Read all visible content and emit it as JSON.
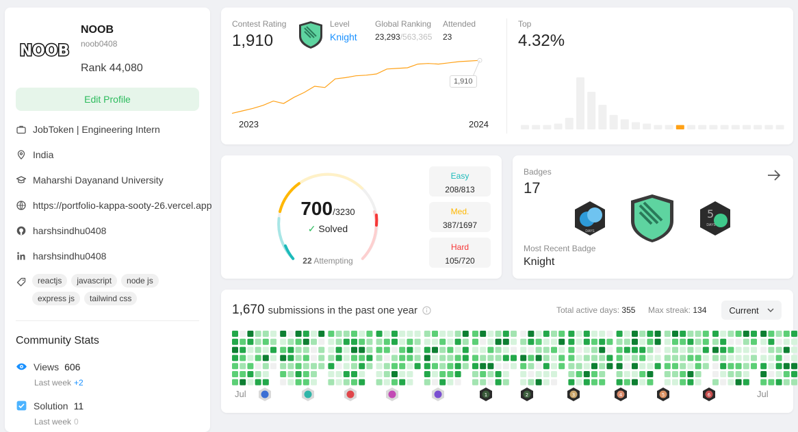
{
  "profile": {
    "display_name": "NOOB",
    "username": "noob0408",
    "rank_text": "Rank 44,080",
    "avatar_text": "NOOB",
    "edit_label": "Edit Profile",
    "info": [
      {
        "icon": "briefcase-icon",
        "text": "JobToken | Engineering Intern"
      },
      {
        "icon": "location-pin-icon",
        "text": "India"
      },
      {
        "icon": "graduation-cap-icon",
        "text": "Maharshi Dayanand University"
      },
      {
        "icon": "globe-icon",
        "text": "https://portfolio-kappa-sooty-26.vercel.app"
      },
      {
        "icon": "github-icon",
        "text": "harshsindhu0408"
      },
      {
        "icon": "linkedin-icon",
        "text": "harshsindhu0408"
      }
    ],
    "tags": [
      "reactjs",
      "javascript",
      "node js",
      "express js",
      "tailwind css"
    ]
  },
  "community": {
    "title": "Community Stats",
    "views_label": "Views",
    "views_value": "606",
    "views_week_label": "Last week",
    "views_week_delta": "+2",
    "solution_label": "Solution",
    "solution_value": "11",
    "solution_week_label": "Last week",
    "solution_week_delta": "0"
  },
  "contest": {
    "rating_label": "Contest Rating",
    "rating_value": "1,910",
    "level_label": "Level",
    "level_value": "Knight",
    "global_label": "Global Ranking",
    "global_value": "23,293",
    "global_total": "/563,365",
    "attended_label": "Attended",
    "attended_value": "23",
    "top_label": "Top",
    "top_value": "4.32%",
    "x_start": "2023",
    "x_end": "2024",
    "tooltip": "1,910",
    "rating_history": [
      1480,
      1500,
      1520,
      1545,
      1580,
      1560,
      1610,
      1650,
      1700,
      1690,
      1760,
      1770,
      1785,
      1790,
      1800,
      1840,
      1845,
      1850,
      1880,
      1885,
      1880,
      1890,
      1900,
      1905,
      1910
    ],
    "distribution": [
      3,
      3,
      3,
      4,
      8,
      36,
      26,
      17,
      10,
      7,
      5,
      4,
      3,
      3,
      3,
      3,
      3,
      3,
      3,
      3,
      3,
      3,
      3,
      3
    ],
    "highlight_index": 14,
    "accent_color": "#ffa116"
  },
  "solved": {
    "count": "700",
    "total": "/3230",
    "solved_label": "Solved",
    "attempting_count": "22",
    "attempting_label": "Attempting",
    "easy_label": "Easy",
    "easy_value": "208/813",
    "med_label": "Med.",
    "med_value": "387/1697",
    "hard_label": "Hard",
    "hard_value": "105/720",
    "easy_color": "#1cbaba",
    "med_color": "#ffb700",
    "hard_color": "#f63737"
  },
  "badges": {
    "label": "Badges",
    "count": "17",
    "recent_label": "Most Recent Badge",
    "recent_value": "Knight",
    "mini_text": "DAYS"
  },
  "heatmap": {
    "count": "1,670",
    "text": "submissions in the past one year",
    "active_label": "Total active days:",
    "active_value": "355",
    "streak_label": "Max streak:",
    "streak_value": "134",
    "dropdown_value": "Current",
    "month_start": "Jul",
    "month_end": "Jul",
    "month_badge_colors": [
      "#3b6fd4",
      "#2fb5a8",
      "#e0454a",
      "#c24bb5",
      "#7a4fd1",
      "#3a5a3a",
      "#3d5f3d",
      "#c9a56a",
      "#d98a6a",
      "#d99060",
      "#c85050"
    ],
    "month_badge_numbers": [
      "",
      "",
      "",
      "",
      "",
      "1",
      "2",
      "3",
      "4",
      "5",
      "6"
    ]
  }
}
